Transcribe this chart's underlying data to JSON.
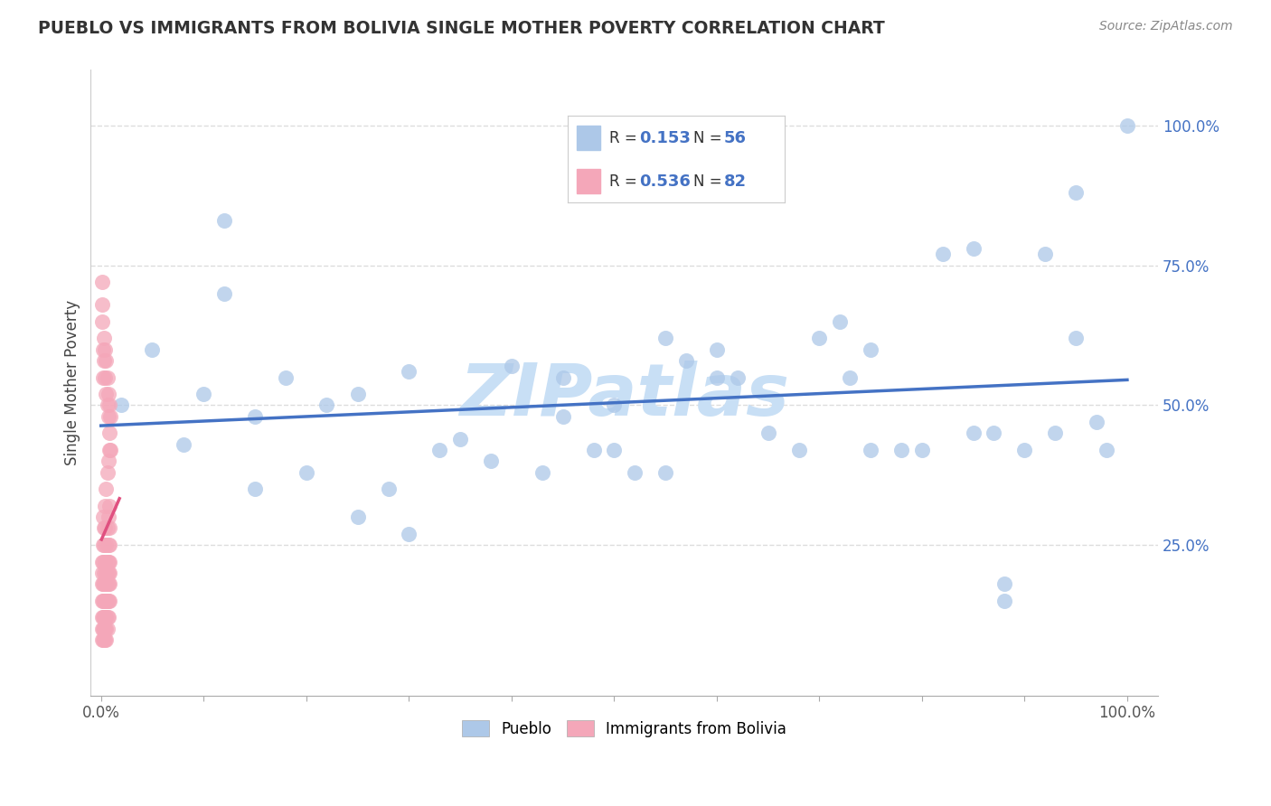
{
  "title": "PUEBLO VS IMMIGRANTS FROM BOLIVIA SINGLE MOTHER POVERTY CORRELATION CHART",
  "source": "Source: ZipAtlas.com",
  "ylabel": "Single Mother Poverty",
  "pueblo_R": 0.153,
  "pueblo_N": 56,
  "bolivia_R": 0.536,
  "bolivia_N": 82,
  "pueblo_color": "#adc8e8",
  "pueblo_line_color": "#4472c4",
  "bolivia_color": "#f4a7b9",
  "bolivia_line_color": "#e05080",
  "watermark_text": "ZIPatlas",
  "watermark_color": "#c8dff5",
  "background_color": "#ffffff",
  "legend_pueblo_label": "Pueblo",
  "legend_bolivia_label": "Immigrants from Bolivia",
  "pueblo_x": [
    0.02,
    0.05,
    0.08,
    0.1,
    0.12,
    0.15,
    0.18,
    0.2,
    0.22,
    0.25,
    0.28,
    0.3,
    0.33,
    0.38,
    0.4,
    0.43,
    0.45,
    0.48,
    0.5,
    0.52,
    0.55,
    0.57,
    0.6,
    0.62,
    0.65,
    0.68,
    0.7,
    0.73,
    0.75,
    0.78,
    0.8,
    0.82,
    0.85,
    0.87,
    0.88,
    0.9,
    0.92,
    0.93,
    0.95,
    0.97,
    0.98,
    1.0,
    0.3,
    0.12,
    0.55,
    0.72,
    0.88,
    0.95,
    0.6,
    0.45,
    0.35,
    0.25,
    0.15,
    0.75,
    0.5,
    0.85
  ],
  "pueblo_y": [
    0.5,
    0.6,
    0.43,
    0.52,
    0.7,
    0.35,
    0.55,
    0.38,
    0.5,
    0.3,
    0.35,
    0.56,
    0.42,
    0.4,
    0.57,
    0.38,
    0.55,
    0.42,
    0.42,
    0.38,
    0.62,
    0.58,
    0.6,
    0.55,
    0.45,
    0.42,
    0.62,
    0.55,
    0.6,
    0.42,
    0.42,
    0.77,
    0.78,
    0.45,
    0.15,
    0.42,
    0.77,
    0.45,
    0.88,
    0.47,
    0.42,
    1.0,
    0.27,
    0.83,
    0.38,
    0.65,
    0.18,
    0.62,
    0.55,
    0.48,
    0.44,
    0.52,
    0.48,
    0.42,
    0.5,
    0.45
  ],
  "bolivia_x": [
    0.001,
    0.001,
    0.001,
    0.001,
    0.001,
    0.001,
    0.001,
    0.001,
    0.001,
    0.001,
    0.002,
    0.002,
    0.002,
    0.002,
    0.002,
    0.002,
    0.002,
    0.002,
    0.002,
    0.002,
    0.003,
    0.003,
    0.003,
    0.003,
    0.003,
    0.003,
    0.003,
    0.003,
    0.003,
    0.003,
    0.004,
    0.004,
    0.004,
    0.004,
    0.004,
    0.004,
    0.004,
    0.004,
    0.004,
    0.004,
    0.005,
    0.005,
    0.005,
    0.005,
    0.005,
    0.005,
    0.005,
    0.005,
    0.005,
    0.005,
    0.006,
    0.006,
    0.006,
    0.006,
    0.006,
    0.006,
    0.006,
    0.006,
    0.006,
    0.006,
    0.007,
    0.007,
    0.007,
    0.007,
    0.007,
    0.007,
    0.007,
    0.007,
    0.007,
    0.007,
    0.008,
    0.008,
    0.008,
    0.008,
    0.008,
    0.008,
    0.008,
    0.008,
    0.008,
    0.008,
    0.009,
    0.009
  ],
  "bolivia_y": [
    0.65,
    0.68,
    0.72,
    0.18,
    0.22,
    0.15,
    0.12,
    0.1,
    0.08,
    0.2,
    0.6,
    0.55,
    0.25,
    0.3,
    0.12,
    0.18,
    0.08,
    0.15,
    0.22,
    0.1,
    0.58,
    0.62,
    0.2,
    0.28,
    0.15,
    0.1,
    0.18,
    0.08,
    0.25,
    0.12,
    0.55,
    0.6,
    0.22,
    0.32,
    0.18,
    0.12,
    0.15,
    0.1,
    0.28,
    0.08,
    0.52,
    0.58,
    0.25,
    0.35,
    0.2,
    0.15,
    0.12,
    0.1,
    0.18,
    0.08,
    0.5,
    0.55,
    0.28,
    0.38,
    0.22,
    0.18,
    0.15,
    0.12,
    0.2,
    0.1,
    0.48,
    0.52,
    0.3,
    0.4,
    0.25,
    0.2,
    0.18,
    0.15,
    0.22,
    0.12,
    0.45,
    0.5,
    0.32,
    0.42,
    0.28,
    0.22,
    0.2,
    0.18,
    0.25,
    0.15,
    0.42,
    0.48
  ],
  "ytick_positions": [
    0.25,
    0.5,
    0.75,
    1.0
  ],
  "ytick_labels": [
    "25.0%",
    "50.0%",
    "75.0%",
    "100.0%"
  ],
  "xtick_positions": [
    0.0,
    1.0
  ],
  "xtick_labels": [
    "0.0%",
    "100.0%"
  ]
}
